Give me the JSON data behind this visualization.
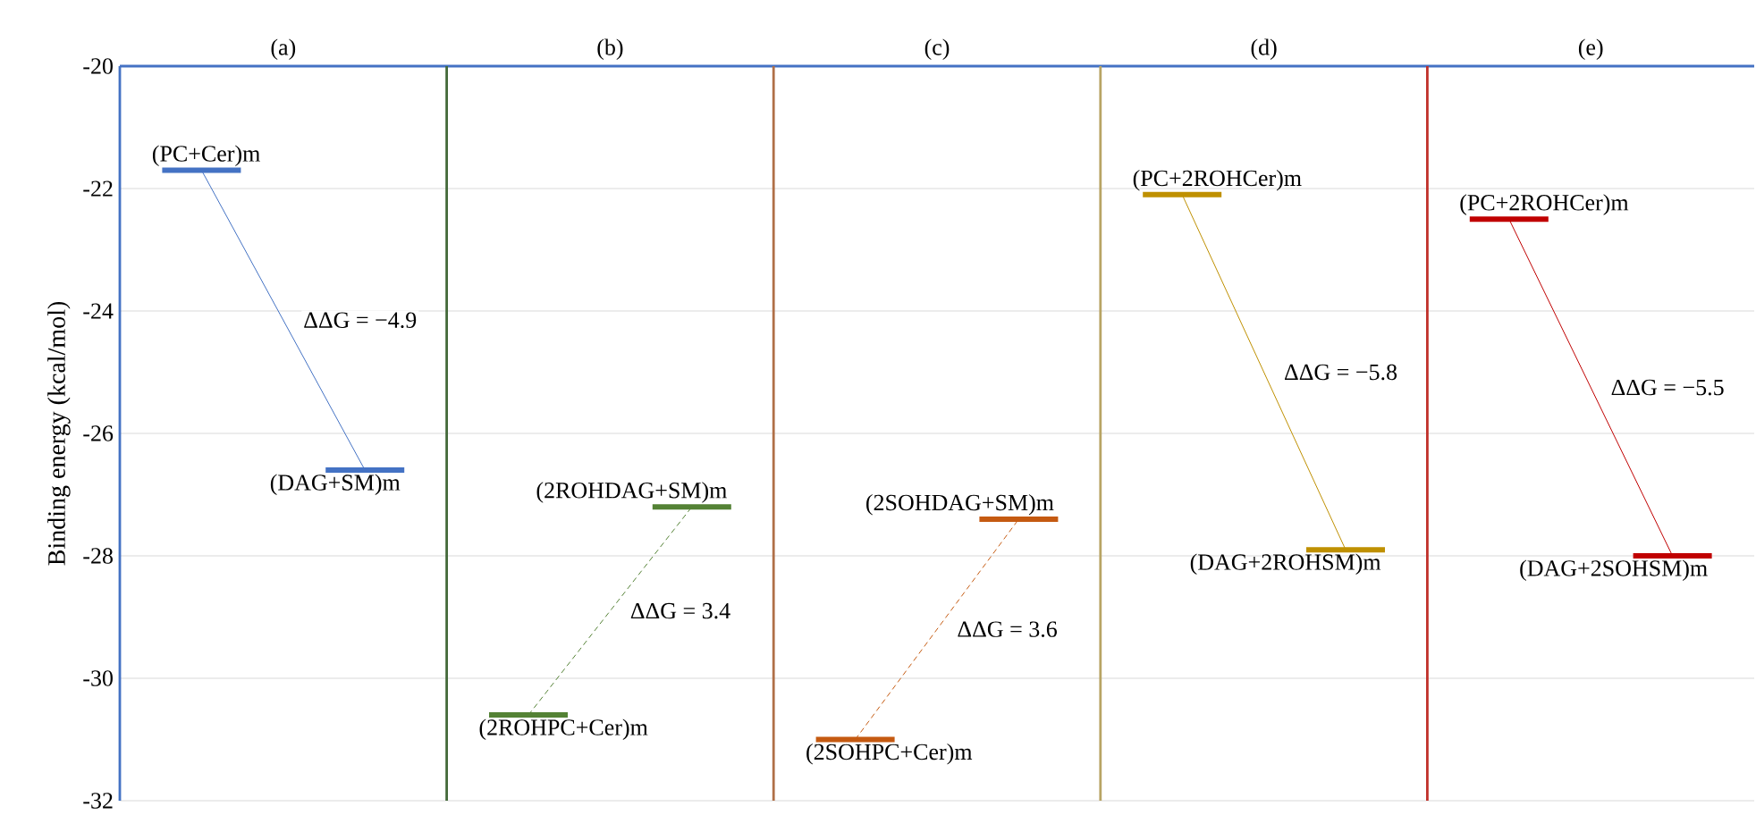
{
  "chart_data": {
    "type": "line",
    "ylabel": "Binding energy (kcal/mol)",
    "categories": [
      null,
      null,
      null,
      null,
      null,
      null,
      null,
      null,
      null,
      null
    ],
    "ylim": [
      -32,
      -20
    ],
    "yticks": [
      -32,
      -30,
      -28,
      -26,
      -24,
      -22,
      -20
    ],
    "grid": "y",
    "series": [
      {
        "color": "#4472c4",
        "line_style": "solid",
        "values": [
          -21.7,
          -26.6,
          null,
          null,
          null,
          null,
          null,
          null,
          null,
          null
        ]
      },
      {
        "color": "#548235",
        "line_style": "dashed",
        "values": [
          null,
          null,
          -30.6,
          -27.2,
          null,
          null,
          null,
          null,
          null,
          null
        ]
      },
      {
        "color": "#c55a11",
        "line_style": "dashed",
        "values": [
          null,
          null,
          null,
          null,
          -31.0,
          -27.4,
          null,
          null,
          null,
          null
        ]
      },
      {
        "color": "#bf9000",
        "line_style": "solid",
        "values": [
          null,
          null,
          null,
          null,
          null,
          null,
          -22.1,
          -27.9,
          null,
          null
        ]
      },
      {
        "color": "#c00000",
        "line_style": "solid",
        "values": [
          null,
          null,
          null,
          null,
          null,
          null,
          null,
          null,
          -22.5,
          -28.0
        ]
      }
    ],
    "annotations": [
      "(a)",
      "(PC+Cer)m",
      "(DAG+SM)m",
      "ΔΔG = −4.9",
      "(b)",
      "(2ROHPC+Cer)m",
      "(2ROHDAG+SM)m",
      "ΔΔG = 3.4",
      "(c)",
      "(2SOHPC+Cer)m",
      "(2SOHDAG+SM)m",
      "ΔΔG = 3.6",
      "(d)",
      "(PC+2ROHCer)m",
      "(DAG+2ROHSM)m",
      "ΔΔG = −5.8",
      "(e)",
      "(PC+2ROHCer)m",
      "(DAG+2SOHSM)m",
      "ΔΔG = −5.5"
    ]
  }
}
